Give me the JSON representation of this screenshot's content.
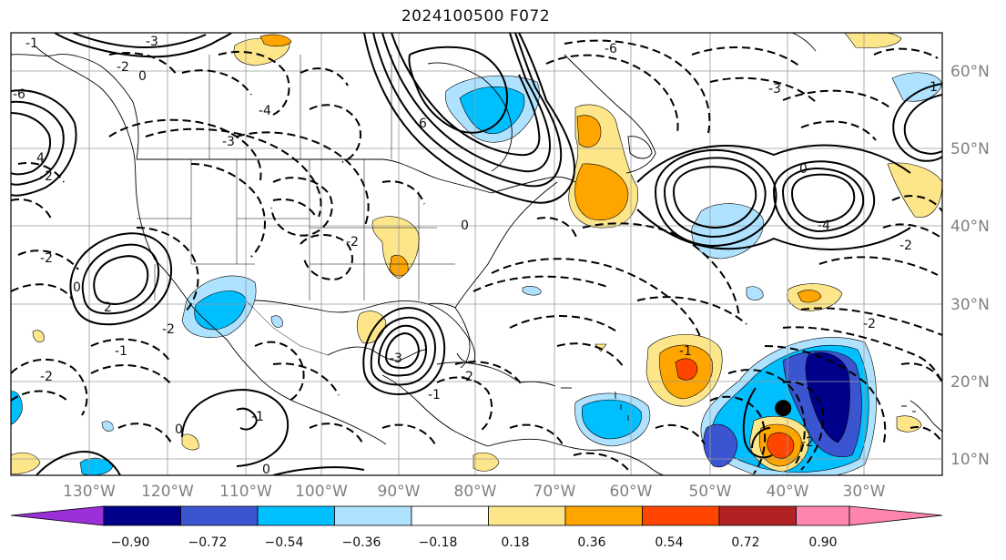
{
  "title": "2024100500 F072",
  "map": {
    "projection": "cylindrical",
    "lon_range": [
      -140,
      -20
    ],
    "lat_range": [
      8,
      64
    ],
    "grid": true,
    "lon_labels": [
      "130°W",
      "120°W",
      "110°W",
      "100°W",
      "90°W",
      "80°W",
      "70°W",
      "60°W",
      "50°W",
      "40°W",
      "30°W"
    ],
    "lat_labels": [
      "60°N",
      "50°N",
      "40°N",
      "30°N",
      "20°N",
      "10°N"
    ],
    "storm_marker": {
      "lon": -40.5,
      "lat": 16.5
    }
  },
  "colorbar": {
    "ticks": [
      "−0.90",
      "−0.72",
      "−0.54",
      "−0.36",
      "−0.18",
      "0.18",
      "0.36",
      "0.54",
      "0.72",
      "0.90"
    ],
    "colors": {
      "under": "#9b30d9",
      "c1": "#00008b",
      "c2": "#3b55d0",
      "c3": "#00bfff",
      "c4": "#aee2ff",
      "c5": "#ffffff",
      "c6": "#fde68a",
      "c7": "#ffa500",
      "c8": "#ff4500",
      "c9": "#b22222",
      "over": "#ff85b0"
    }
  },
  "contour_labels": [
    {
      "t": "-1"
    },
    {
      "t": "-3"
    },
    {
      "t": "-2"
    },
    {
      "t": "0"
    },
    {
      "t": "-4"
    },
    {
      "t": "-6"
    },
    {
      "t": "-3"
    },
    {
      "t": "-2"
    },
    {
      "t": "-2"
    },
    {
      "t": "0"
    },
    {
      "t": "-2"
    },
    {
      "t": "2"
    },
    {
      "t": "-1"
    },
    {
      "t": "-2"
    },
    {
      "t": "-3"
    },
    {
      "t": "-1"
    },
    {
      "t": "-2"
    },
    {
      "t": "0"
    },
    {
      "t": "-1"
    },
    {
      "t": "0"
    },
    {
      "t": "-4"
    },
    {
      "t": "-3"
    },
    {
      "t": "0"
    },
    {
      "t": "-2"
    },
    {
      "t": "-2"
    },
    {
      "t": "-1"
    },
    {
      "t": "-2"
    },
    {
      "t": "-6"
    },
    {
      "t": "4"
    },
    {
      "t": "6"
    },
    {
      "t": "-2"
    },
    {
      "t": "0"
    },
    {
      "t": "-1"
    }
  ]
}
